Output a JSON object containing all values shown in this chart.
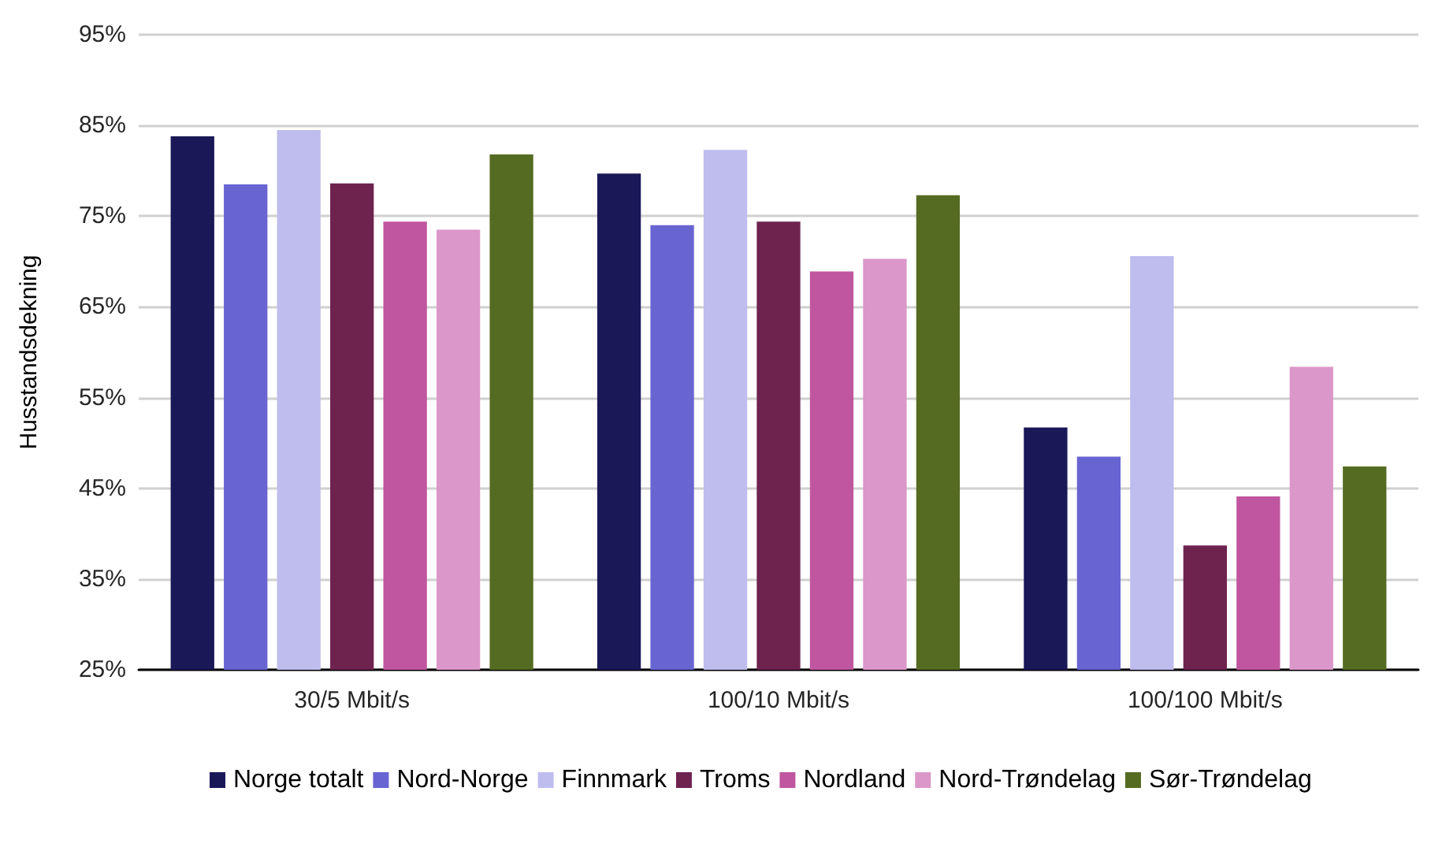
{
  "chart_data": {
    "type": "bar",
    "ylabel": "Husstandsdekning",
    "categories": [
      "30/5 Mbit/s",
      "100/10 Mbit/s",
      "100/100 Mbit/s"
    ],
    "series": [
      {
        "name": "Norge totalt",
        "color": "#1b1858",
        "values": [
          83.8,
          79.7,
          51.7
        ]
      },
      {
        "name": "Nord-Norge",
        "color": "#6864d2",
        "values": [
          78.5,
          74.0,
          48.5
        ]
      },
      {
        "name": "Finnmark",
        "color": "#bfbdee",
        "values": [
          84.5,
          82.3,
          70.6
        ]
      },
      {
        "name": "Troms",
        "color": "#6e234f",
        "values": [
          78.6,
          74.4,
          38.7
        ]
      },
      {
        "name": "Nordland",
        "color": "#c0569f",
        "values": [
          74.4,
          68.9,
          44.1
        ]
      },
      {
        "name": "Nord-Trøndelag",
        "color": "#db97c9",
        "values": [
          73.5,
          70.3,
          58.4
        ]
      },
      {
        "name": "Sør-Trøndelag",
        "color": "#566b22",
        "values": [
          81.8,
          77.3,
          47.4
        ]
      }
    ],
    "ylim": [
      25,
      95
    ],
    "yticks": [
      {
        "value": 25,
        "label": "25%"
      },
      {
        "value": 35,
        "label": "35%"
      },
      {
        "value": 45,
        "label": "45%"
      },
      {
        "value": 55,
        "label": "55%"
      },
      {
        "value": 65,
        "label": "65%"
      },
      {
        "value": 75,
        "label": "75%"
      },
      {
        "value": 85,
        "label": "85%"
      },
      {
        "value": 95,
        "label": "95%"
      }
    ],
    "grid": "y",
    "legend": "bottom"
  }
}
